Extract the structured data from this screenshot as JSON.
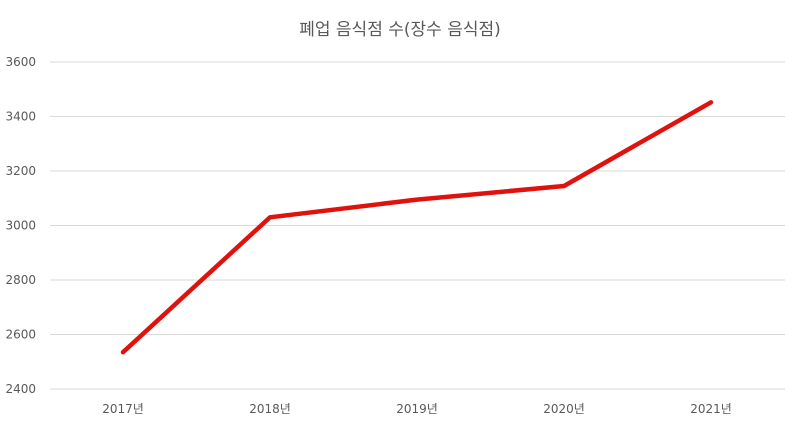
{
  "chart_data": {
    "type": "line",
    "title": "폐업 음식점 수(장수 음식점)",
    "categories": [
      "2017년",
      "2018년",
      "2019년",
      "2020년",
      "2021년"
    ],
    "series": [
      {
        "values": [
          2535,
          3030,
          3095,
          3145,
          3452
        ]
      }
    ],
    "ylim": [
      2400,
      3600
    ],
    "yticks": [
      2400,
      2600,
      2800,
      3000,
      3200,
      3400,
      3600
    ],
    "grid": true,
    "legend": "none",
    "colors": {
      "line": "#e0120d",
      "grid": "#d9d9d9",
      "text": "#595959"
    }
  }
}
